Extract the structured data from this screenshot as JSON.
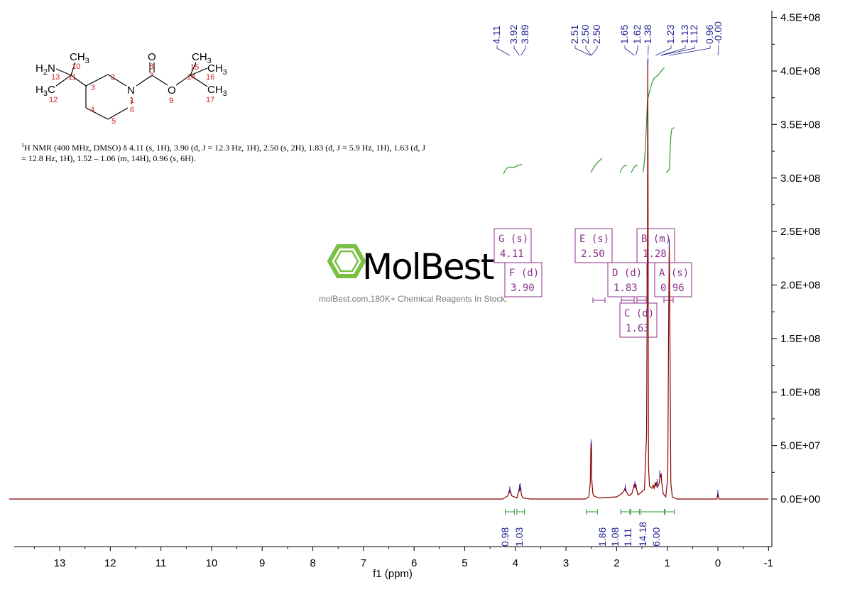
{
  "chart_data": {
    "type": "line",
    "title": "",
    "xlabel": "f1 (ppm)",
    "ylabel": "",
    "xlim": [
      14,
      -1
    ],
    "ylim": [
      -45000000.0,
      450000000.0
    ],
    "x_ticks": [
      "13",
      "12",
      "11",
      "10",
      "9",
      "8",
      "7",
      "6",
      "5",
      "4",
      "3",
      "2",
      "1",
      "0",
      "-1"
    ],
    "y_ticks": [
      "-0.0E+00",
      "0.0E+00",
      "5.0E+07",
      "1.0E+08",
      "1.5E+08",
      "2.0E+08",
      "2.5E+08",
      "3.0E+08",
      "3.5E+08",
      "4.0E+08",
      "4.5E+08"
    ],
    "y_tick_values": [
      0,
      0,
      50000000.0,
      100000000.0,
      150000000.0,
      200000000.0,
      250000000.0,
      300000000.0,
      350000000.0,
      400000000.0,
      450000000.0
    ],
    "series": [
      {
        "color": "#8b0000",
        "x": [
          14,
          4.25,
          4.15,
          4.11,
          4.07,
          3.97,
          3.93,
          3.92,
          3.91,
          3.9,
          3.89,
          3.88,
          3.85,
          3.7,
          2.62,
          2.55,
          2.52,
          2.51,
          2.505,
          2.5,
          2.495,
          2.49,
          2.47,
          2.45,
          2.35,
          2.0,
          1.9,
          1.85,
          1.83,
          1.81,
          1.76,
          1.7,
          1.66,
          1.65,
          1.64,
          1.62,
          1.61,
          1.58,
          1.52,
          1.45,
          1.41,
          1.39,
          1.385,
          1.38,
          1.375,
          1.37,
          1.35,
          1.3,
          1.28,
          1.26,
          1.24,
          1.23,
          1.22,
          1.2,
          1.17,
          1.15,
          1.13,
          1.12,
          1.11,
          1.08,
          1.03,
          0.99,
          0.975,
          0.96,
          0.945,
          0.93,
          0.9,
          0.8,
          0.5,
          0.02,
          0.0,
          -0.02,
          -1
        ],
        "y": [
          0,
          0,
          3000000.0,
          9000000.0,
          3000000.0,
          1000000.0,
          8000000.0,
          11000000.0,
          8000000.0,
          12000000.0,
          9000000.0,
          4000000.0,
          1000000.0,
          0,
          0,
          2000000.0,
          15000000.0,
          45000000.0,
          53000000.0,
          52000000.0,
          46000000.0,
          18000000.0,
          5000000.0,
          3000000.0,
          1000000.0,
          2000000.0,
          5000000.0,
          8000000.0,
          11000000.0,
          7000000.0,
          3000000.0,
          5000000.0,
          12000000.0,
          14000000.0,
          10000000.0,
          14000000.0,
          10000000.0,
          4000000.0,
          6000000.0,
          9000000.0,
          60000000.0,
          250000000.0,
          410000000.0,
          320000000.0,
          120000000.0,
          30000000.0,
          12000000.0,
          10000000.0,
          13000000.0,
          10000000.0,
          15000000.0,
          12000000.0,
          16000000.0,
          11000000.0,
          13000000.0,
          18000000.0,
          22000000.0,
          24000000.0,
          16000000.0,
          5000000.0,
          2000000.0,
          20000000.0,
          150000000.0,
          240000000.0,
          140000000.0,
          15000000.0,
          2000000.0,
          0,
          0,
          0,
          6000000.0,
          0,
          0
        ]
      }
    ],
    "peak_labels": [
      "4.11",
      "3.92",
      "3.89",
      "2.51",
      "2.50",
      "2.50",
      "1.65",
      "1.62",
      "1.38",
      "1.23",
      "1.13",
      "1.12",
      "0.96",
      "-0.00"
    ],
    "peak_positions": [
      4.11,
      3.92,
      3.89,
      2.51,
      2.5,
      2.5,
      1.65,
      1.62,
      1.38,
      1.23,
      1.13,
      1.12,
      0.96,
      0.0
    ],
    "integrals": [
      {
        "from": 4.2,
        "to": 4.02,
        "value": "0.98"
      },
      {
        "from": 3.97,
        "to": 3.82,
        "value": "1.03"
      },
      {
        "from": 2.6,
        "to": 2.38,
        "value": "1.86"
      },
      {
        "from": 1.92,
        "to": 1.74,
        "value": "1.08"
      },
      {
        "from": 1.72,
        "to": 1.55,
        "value": "1.11"
      },
      {
        "from": 1.52,
        "to": 1.06,
        "value": "14.18"
      },
      {
        "from": 1.04,
        "to": 0.86,
        "value": "6.00"
      }
    ],
    "multiplets": [
      {
        "label": "G (s)",
        "shift": "4.11"
      },
      {
        "label": "F (d)",
        "shift": "3.90"
      },
      {
        "label": "E (s)",
        "shift": "2.50"
      },
      {
        "label": "D (d)",
        "shift": "1.83"
      },
      {
        "label": "C (d)",
        "shift": "1.63"
      },
      {
        "label": "B (m)",
        "shift": "1.28"
      },
      {
        "label": "A (s)",
        "shift": "0.96"
      }
    ]
  },
  "description": {
    "superscript": "1",
    "text": "H NMR (400 MHz, DMSO) δ 4.11 (s, 1H), 3.90 (d, J = 12.3 Hz, 1H), 2.50 (s, 2H), 1.83 (d, J = 5.9 Hz, 1H), 1.63 (d, J = 12.8 Hz, 1H), 1.52 – 1.06 (m, 14H), 0.96 (s, 6H)."
  },
  "molecule": {
    "labels": [
      "H2N",
      "CH3",
      "H3C",
      "N",
      "O",
      "O",
      "CH3",
      "CH3",
      "CH3"
    ],
    "atom_numbers": [
      "1",
      "2",
      "3",
      "4",
      "5",
      "6",
      "7",
      "8",
      "9",
      "10",
      "11",
      "12",
      "13",
      "14",
      "15",
      "16",
      "17"
    ]
  },
  "watermark": {
    "brand": "MolBest",
    "tagline": "molBest.com,180K+ Chemical Reagents In Stock."
  },
  "colors": {
    "spectrum": "#8b0000",
    "integral_curve": "#2e9a2e",
    "peak_label": "#1f1f8f",
    "multiplet_box": "#8b2f8b",
    "atom_number": "#d21f1f",
    "watermark_green": "#7ac143"
  }
}
